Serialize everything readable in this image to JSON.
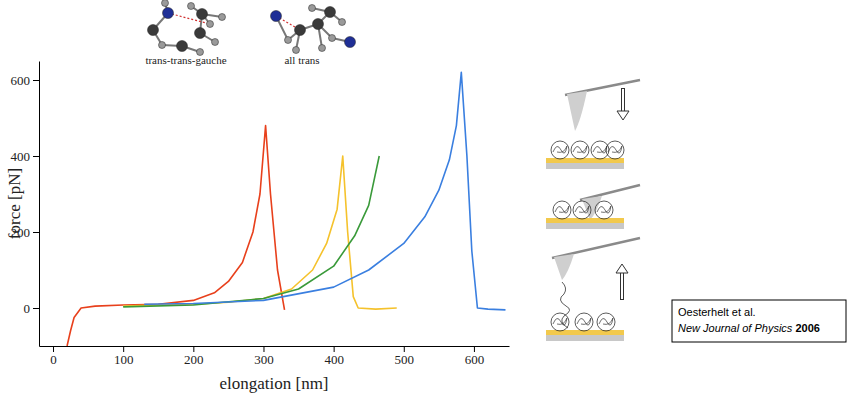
{
  "chart_data": {
    "type": "line",
    "xlabel": "elongation [nm]",
    "ylabel": "force [pN]",
    "xlim": [
      -20,
      650
    ],
    "ylim": [
      -100,
      650
    ],
    "xticks": [
      0,
      100,
      200,
      300,
      400,
      500,
      600
    ],
    "yticks": [
      0,
      200,
      400,
      600
    ],
    "series": [
      {
        "color": "#e8401c",
        "x": [
          20,
          25,
          30,
          40,
          60,
          100,
          150,
          200,
          230,
          250,
          270,
          285,
          295,
          303,
          310,
          320,
          330
        ],
        "values": [
          -100,
          -60,
          -25,
          0,
          5,
          8,
          10,
          20,
          40,
          70,
          120,
          200,
          300,
          480,
          300,
          100,
          -5
        ]
      },
      {
        "color": "#f5c22c",
        "x": [
          100,
          150,
          200,
          250,
          300,
          340,
          370,
          390,
          405,
          413,
          420,
          428,
          435,
          460,
          490
        ],
        "values": [
          5,
          8,
          10,
          15,
          25,
          50,
          100,
          170,
          260,
          400,
          200,
          30,
          0,
          -3,
          0
        ]
      },
      {
        "color": "#3a9a3a",
        "x": [
          100,
          200,
          300,
          350,
          400,
          430,
          450,
          465
        ],
        "values": [
          3,
          8,
          25,
          50,
          110,
          190,
          270,
          400
        ]
      },
      {
        "color": "#3a7fe0",
        "x": [
          130,
          200,
          300,
          400,
          450,
          500,
          530,
          550,
          565,
          575,
          582,
          590,
          597,
          605,
          620,
          645
        ],
        "values": [
          10,
          12,
          20,
          55,
          100,
          170,
          240,
          310,
          390,
          480,
          620,
          400,
          150,
          0,
          -3,
          -5
        ]
      }
    ],
    "annotations": [
      {
        "text": "trans-trans-gauche"
      },
      {
        "text": "all trans"
      }
    ],
    "citation": {
      "authors": "Oesterhelt et al.",
      "journal": "New Journal of Physics",
      "year": "2006"
    }
  }
}
